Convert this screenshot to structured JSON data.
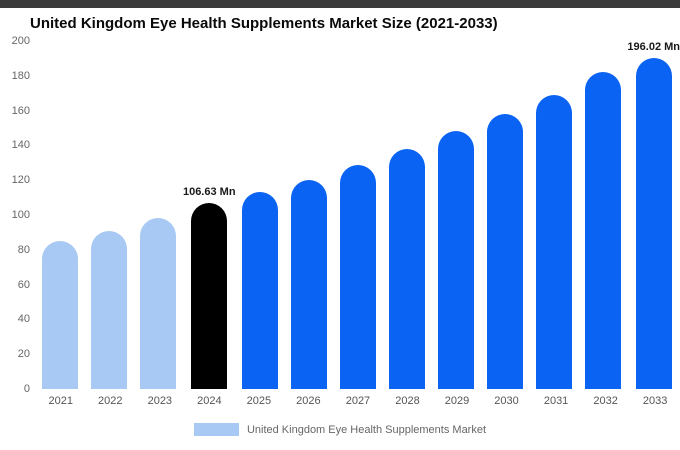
{
  "top_strip": {
    "color": "#3b3b3b"
  },
  "chart_data": {
    "type": "bar",
    "title": "United Kingdom Eye Health Supplements Market Size (2021-2033)",
    "categories": [
      "2021",
      "2022",
      "2023",
      "2024",
      "2025",
      "2026",
      "2027",
      "2028",
      "2029",
      "2030",
      "2031",
      "2032",
      "2033"
    ],
    "values": [
      85,
      91,
      98,
      106.63,
      113,
      120,
      129,
      138,
      148,
      158,
      169,
      182,
      196.02
    ],
    "bar_labels": [
      "",
      "",
      "",
      "106.63 Mn",
      "",
      "",
      "",
      "",
      "",
      "",
      "",
      "",
      "196.02 Mn"
    ],
    "bar_colors": [
      "#a7c9f3",
      "#a7c9f3",
      "#a7c9f3",
      "#000000",
      "#0b63f3",
      "#0b63f3",
      "#0b63f3",
      "#0b63f3",
      "#0b63f3",
      "#0b63f3",
      "#0b63f3",
      "#0b63f3",
      "#0b63f3"
    ],
    "ylim": [
      0,
      200
    ],
    "ytick_step": 20,
    "xlabel": "",
    "ylabel": "",
    "grid": false,
    "legend_position": "bottom",
    "legend_label": "United Kingdom Eye Health Supplements Market",
    "legend_color": "#a7c9f3"
  }
}
